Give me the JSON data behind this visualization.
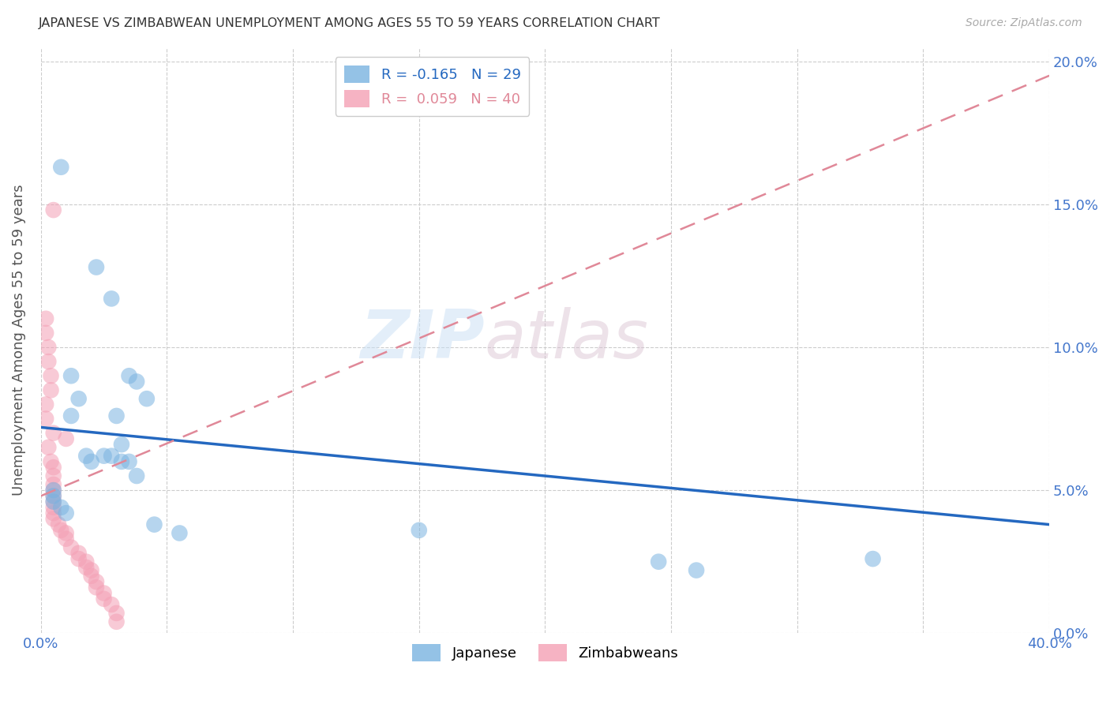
{
  "title": "JAPANESE VS ZIMBABWEAN UNEMPLOYMENT AMONG AGES 55 TO 59 YEARS CORRELATION CHART",
  "source": "Source: ZipAtlas.com",
  "ylabel": "Unemployment Among Ages 55 to 59 years",
  "xlim": [
    0.0,
    0.4
  ],
  "ylim": [
    0.0,
    0.205
  ],
  "xticks": [
    0.0,
    0.05,
    0.1,
    0.15,
    0.2,
    0.25,
    0.3,
    0.35,
    0.4
  ],
  "yticks": [
    0.0,
    0.05,
    0.1,
    0.15,
    0.2
  ],
  "ytick_labels_right": [
    "0.0%",
    "5.0%",
    "10.0%",
    "15.0%",
    "20.0%"
  ],
  "xtick_labels": [
    "0.0%",
    "",
    "",
    "",
    "",
    "",
    "",
    "",
    "40.0%"
  ],
  "legend_label_jp": "R = -0.165   N = 29",
  "legend_label_zw": "R =  0.059   N = 40",
  "japanese_scatter": [
    [
      0.008,
      0.163
    ],
    [
      0.022,
      0.128
    ],
    [
      0.028,
      0.117
    ],
    [
      0.035,
      0.09
    ],
    [
      0.038,
      0.088
    ],
    [
      0.042,
      0.082
    ],
    [
      0.03,
      0.076
    ],
    [
      0.032,
      0.066
    ],
    [
      0.012,
      0.09
    ],
    [
      0.015,
      0.082
    ],
    [
      0.012,
      0.076
    ],
    [
      0.018,
      0.062
    ],
    [
      0.02,
      0.06
    ],
    [
      0.025,
      0.062
    ],
    [
      0.028,
      0.062
    ],
    [
      0.032,
      0.06
    ],
    [
      0.035,
      0.06
    ],
    [
      0.038,
      0.055
    ],
    [
      0.005,
      0.05
    ],
    [
      0.005,
      0.048
    ],
    [
      0.005,
      0.046
    ],
    [
      0.008,
      0.044
    ],
    [
      0.01,
      0.042
    ],
    [
      0.045,
      0.038
    ],
    [
      0.055,
      0.035
    ],
    [
      0.15,
      0.036
    ],
    [
      0.245,
      0.025
    ],
    [
      0.26,
      0.022
    ],
    [
      0.33,
      0.026
    ]
  ],
  "zimbabwean_scatter": [
    [
      0.005,
      0.148
    ],
    [
      0.002,
      0.11
    ],
    [
      0.002,
      0.105
    ],
    [
      0.003,
      0.1
    ],
    [
      0.003,
      0.095
    ],
    [
      0.004,
      0.09
    ],
    [
      0.004,
      0.085
    ],
    [
      0.002,
      0.08
    ],
    [
      0.002,
      0.075
    ],
    [
      0.005,
      0.07
    ],
    [
      0.01,
      0.068
    ],
    [
      0.003,
      0.065
    ],
    [
      0.004,
      0.06
    ],
    [
      0.005,
      0.058
    ],
    [
      0.005,
      0.055
    ],
    [
      0.005,
      0.052
    ],
    [
      0.005,
      0.05
    ],
    [
      0.005,
      0.048
    ],
    [
      0.005,
      0.046
    ],
    [
      0.005,
      0.044
    ],
    [
      0.005,
      0.042
    ],
    [
      0.005,
      0.04
    ],
    [
      0.007,
      0.038
    ],
    [
      0.008,
      0.036
    ],
    [
      0.01,
      0.035
    ],
    [
      0.01,
      0.033
    ],
    [
      0.012,
      0.03
    ],
    [
      0.015,
      0.028
    ],
    [
      0.015,
      0.026
    ],
    [
      0.018,
      0.025
    ],
    [
      0.018,
      0.023
    ],
    [
      0.02,
      0.022
    ],
    [
      0.02,
      0.02
    ],
    [
      0.022,
      0.018
    ],
    [
      0.022,
      0.016
    ],
    [
      0.025,
      0.014
    ],
    [
      0.025,
      0.012
    ],
    [
      0.028,
      0.01
    ],
    [
      0.03,
      0.007
    ],
    [
      0.03,
      0.004
    ]
  ],
  "japanese_line_x": [
    0.0,
    0.4
  ],
  "japanese_line_y": [
    0.072,
    0.038
  ],
  "zimbabwean_line_x": [
    0.0,
    0.4
  ],
  "zimbabwean_line_y": [
    0.048,
    0.195
  ],
  "japanese_color": "#7ab3e0",
  "zimbabwean_color": "#f4a0b5",
  "japanese_line_color": "#2468c0",
  "zimbabwean_line_color": "#e08898",
  "background_color": "#ffffff",
  "watermark_zip": "ZIP",
  "watermark_atlas": "atlas",
  "grid_color": "#cccccc"
}
